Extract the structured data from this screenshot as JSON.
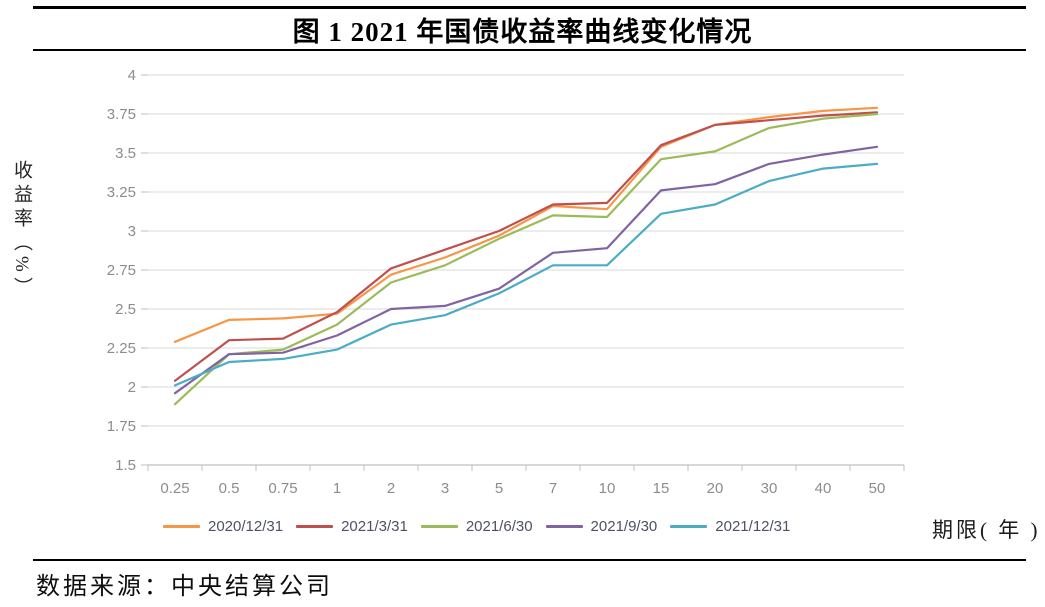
{
  "header": {
    "title": "图 1 2021 年国债收益率曲线变化情况"
  },
  "footer": {
    "source": "数据来源：中央结算公司"
  },
  "chart_data": {
    "type": "line",
    "title": "图 1 2021 年国债收益率曲线变化情况",
    "ylabel": "收益率（%）",
    "xlabel": "期限( 年 )",
    "categories": [
      "0.25",
      "0.5",
      "0.75",
      "1",
      "2",
      "3",
      "5",
      "7",
      "10",
      "15",
      "20",
      "30",
      "40",
      "50"
    ],
    "ylim": [
      1.5,
      4.0
    ],
    "ytick_step": 0.25,
    "yticks": [
      "4",
      "3.75",
      "3.5",
      "3.25",
      "3",
      "2.75",
      "2.5",
      "2.25",
      "2",
      "1.75",
      "1.5"
    ],
    "grid": "horizontal",
    "legend_position": "bottom",
    "series": [
      {
        "name": "2020/12/31",
        "color": "#F79646",
        "values": [
          2.29,
          2.43,
          2.44,
          2.47,
          2.72,
          2.83,
          2.97,
          3.16,
          3.14,
          3.54,
          3.68,
          3.73,
          3.77,
          3.79
        ]
      },
      {
        "name": "2021/3/31",
        "color": "#C0504D",
        "values": [
          2.04,
          2.3,
          2.31,
          2.48,
          2.76,
          2.88,
          3.0,
          3.17,
          3.18,
          3.55,
          3.68,
          3.71,
          3.74,
          3.76
        ]
      },
      {
        "name": "2021/6/30",
        "color": "#9BBB59",
        "values": [
          1.89,
          2.21,
          2.24,
          2.4,
          2.67,
          2.78,
          2.95,
          3.1,
          3.09,
          3.46,
          3.51,
          3.66,
          3.72,
          3.75
        ]
      },
      {
        "name": "2021/9/30",
        "color": "#8064A2",
        "values": [
          1.96,
          2.21,
          2.22,
          2.33,
          2.5,
          2.52,
          2.63,
          2.86,
          2.89,
          3.26,
          3.3,
          3.43,
          3.49,
          3.54
        ]
      },
      {
        "name": "2021/12/31",
        "color": "#4BACC6",
        "values": [
          2.01,
          2.16,
          2.18,
          2.24,
          2.4,
          2.46,
          2.6,
          2.78,
          2.78,
          3.11,
          3.17,
          3.32,
          3.4,
          3.43
        ]
      }
    ],
    "styles": {
      "gridline_color": "#d9d9d9",
      "axis_color": "#bfbfbf",
      "tick_label_color": "#8c8c8c",
      "line_width": 2.2
    }
  }
}
